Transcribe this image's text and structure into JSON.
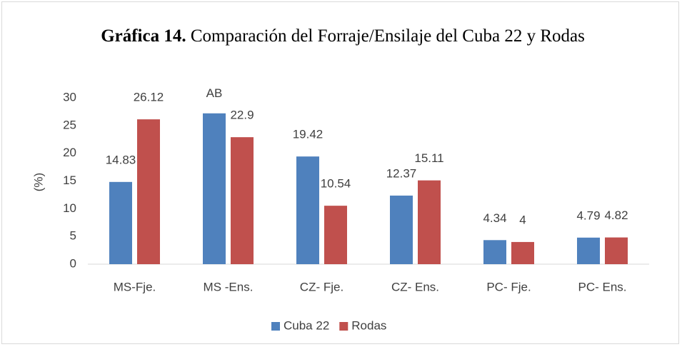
{
  "chart_data": {
    "type": "bar",
    "title_prefix": "Gráfica 14.",
    "title": "Comparación del Forraje/Ensilaje del Cuba 22 y Rodas",
    "y_label": "(%)",
    "categories": [
      "MS-Fje.",
      "MS -Ens.",
      "CZ- Fje.",
      "CZ- Ens.",
      "PC- Fje.",
      "PC- Ens."
    ],
    "series": [
      {
        "name": "Cuba 22",
        "color": "#4f81bd",
        "values": [
          14.83,
          27.2,
          19.42,
          12.37,
          4.34,
          4.79
        ],
        "value_labels": [
          "14.83",
          null,
          "19.42",
          "12.37",
          "4.34",
          "4.79"
        ]
      },
      {
        "name": "Rodas",
        "color": "#c0504d",
        "values": [
          26.12,
          22.9,
          10.54,
          15.11,
          4,
          4.82
        ]
      }
    ],
    "annotations": [
      {
        "text": "AB",
        "category": "MS -Ens.",
        "series": "Cuba 22"
      }
    ],
    "ylim": [
      0,
      30
    ],
    "yticks": [
      0,
      5,
      10,
      15,
      20,
      25,
      30
    ],
    "grid": false,
    "legend": "bottom"
  }
}
